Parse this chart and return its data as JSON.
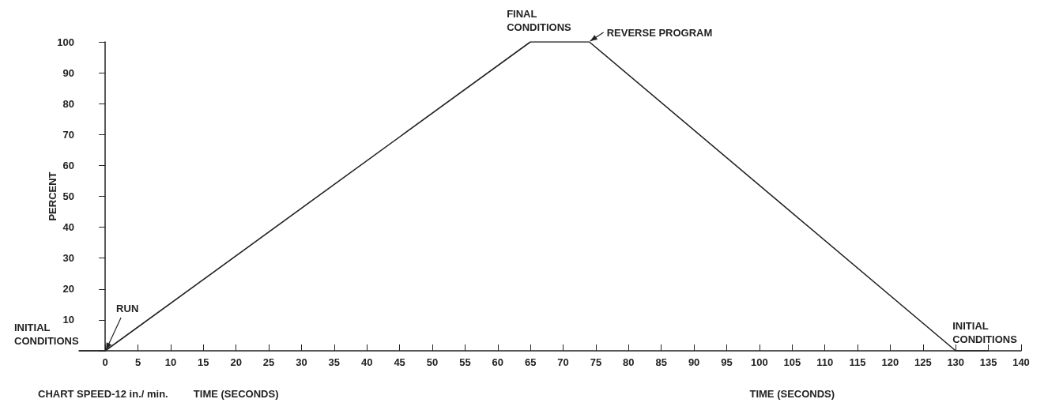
{
  "chart_data": {
    "type": "line",
    "xlabel": "TIME (SECONDS)",
    "ylabel": "PERCENT",
    "x": [
      -4,
      0,
      65,
      74,
      130,
      135
    ],
    "series": [
      {
        "color": "#222222",
        "values": [
          0,
          0,
          100,
          100,
          0,
          0
        ]
      }
    ],
    "xlim": [
      -4,
      140
    ],
    "xticks": [
      0,
      5,
      10,
      15,
      20,
      25,
      30,
      35,
      40,
      45,
      50,
      55,
      60,
      65,
      70,
      75,
      80,
      85,
      90,
      95,
      100,
      105,
      110,
      115,
      120,
      125,
      130,
      135,
      140
    ],
    "ylim": [
      0,
      100
    ],
    "yticks": [
      {
        "value": 0,
        "label": null
      },
      10,
      20,
      30,
      40,
      50,
      60,
      70,
      80,
      90,
      100
    ],
    "marker": "none",
    "line_style": "solid",
    "annotations": [
      {
        "text": "INITIAL CONDITIONS",
        "x": -4,
        "y": 0
      },
      {
        "text": "RUN",
        "x": 0,
        "y": 0
      },
      {
        "text": "FINAL CONDITIONS",
        "x": 65,
        "y": 100
      },
      {
        "text": "REVERSE PROGRAM",
        "x": 74,
        "y": 100
      },
      {
        "text": "INITIAL CONDITIONS",
        "x": 130,
        "y": 0
      },
      "CHART SPEED-12 in./ min.",
      "TIME (SECONDS)"
    ]
  }
}
